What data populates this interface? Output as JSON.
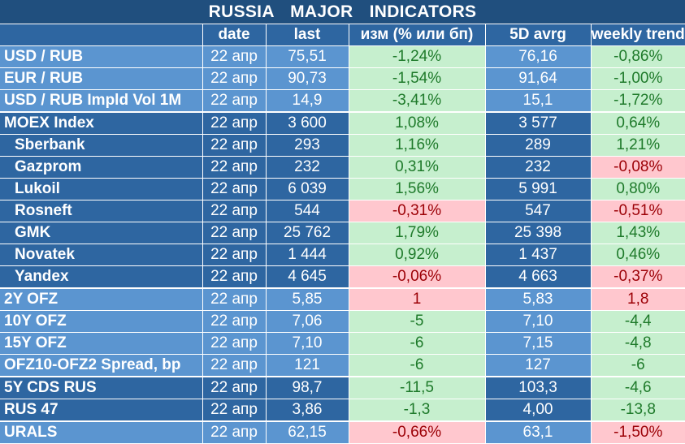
{
  "title": "RUSSIA   MAJOR   INDICATORS",
  "columns": [
    "",
    "date",
    "last",
    "изм (% или бп)",
    "5D avrg",
    "weekly trend"
  ],
  "colors": {
    "header_bg": "#204f7e",
    "dark_row": "#2e66a1",
    "light_row": "#5b95d0",
    "pos_bg": "#c6efce",
    "pos_fg": "#1e7a2a",
    "neg_bg": "#ffc7ce",
    "neg_fg": "#9c0006"
  },
  "chart_data": {
    "type": "table",
    "title": "RUSSIA   MAJOR   INDICATORS",
    "columns": [
      "",
      "date",
      "last",
      "изм (% или бп)",
      "5D avrg",
      "weekly trend"
    ],
    "rows": [
      {
        "name": "USD / RUB",
        "group": "fx",
        "sub": false,
        "date": "22 апр",
        "last": "75,51",
        "chg": "-1,24%",
        "chg_sign": "pos",
        "avg": "76,16",
        "trend": "-0,86%",
        "trend_sign": "pos"
      },
      {
        "name": "EUR / RUB",
        "group": "fx",
        "sub": false,
        "date": "22 апр",
        "last": "90,73",
        "chg": "-1,54%",
        "chg_sign": "pos",
        "avg": "91,64",
        "trend": "-1,00%",
        "trend_sign": "pos"
      },
      {
        "name": "USD / RUB Impld Vol 1M",
        "group": "fx",
        "sub": false,
        "date": "22 апр",
        "last": "14,9",
        "chg": "-3,41%",
        "chg_sign": "pos",
        "avg": "15,1",
        "trend": "-1,72%",
        "trend_sign": "pos"
      },
      {
        "name": "MOEX Index",
        "group": "eq",
        "sub": false,
        "date": "22 апр",
        "last": "3 600",
        "chg": "1,08%",
        "chg_sign": "pos",
        "avg": "3 577",
        "trend": "0,64%",
        "trend_sign": "pos"
      },
      {
        "name": "Sberbank",
        "group": "eq",
        "sub": true,
        "date": "22 апр",
        "last": "293",
        "chg": "1,16%",
        "chg_sign": "pos",
        "avg": "289",
        "trend": "1,21%",
        "trend_sign": "pos"
      },
      {
        "name": "Gazprom",
        "group": "eq",
        "sub": true,
        "date": "22 апр",
        "last": "232",
        "chg": "0,31%",
        "chg_sign": "pos",
        "avg": "232",
        "trend": "-0,08%",
        "trend_sign": "neg"
      },
      {
        "name": "Lukoil",
        "group": "eq",
        "sub": true,
        "date": "22 апр",
        "last": "6 039",
        "chg": "1,56%",
        "chg_sign": "pos",
        "avg": "5 991",
        "trend": "0,80%",
        "trend_sign": "pos"
      },
      {
        "name": "Rosneft",
        "group": "eq",
        "sub": true,
        "date": "22 апр",
        "last": "544",
        "chg": "-0,31%",
        "chg_sign": "neg",
        "avg": "547",
        "trend": "-0,51%",
        "trend_sign": "neg"
      },
      {
        "name": "GMK",
        "group": "eq",
        "sub": true,
        "date": "22 апр",
        "last": "25 762",
        "chg": "1,79%",
        "chg_sign": "pos",
        "avg": "25 398",
        "trend": "1,43%",
        "trend_sign": "pos"
      },
      {
        "name": "Novatek",
        "group": "eq",
        "sub": true,
        "date": "22 апр",
        "last": "1 444",
        "chg": "0,92%",
        "chg_sign": "pos",
        "avg": "1 437",
        "trend": "0,46%",
        "trend_sign": "pos"
      },
      {
        "name": "Yandex",
        "group": "eq",
        "sub": true,
        "date": "22 апр",
        "last": "4 645",
        "chg": "-0,06%",
        "chg_sign": "neg",
        "avg": "4 663",
        "trend": "-0,37%",
        "trend_sign": "neg"
      },
      {
        "name": "2Y OFZ",
        "group": "ofz",
        "sub": false,
        "date": "22 апр",
        "last": "5,85",
        "chg": "1",
        "chg_sign": "neg",
        "avg": "5,83",
        "trend": "1,8",
        "trend_sign": "neg"
      },
      {
        "name": "10Y OFZ",
        "group": "ofz",
        "sub": false,
        "date": "22 апр",
        "last": "7,06",
        "chg": "-5",
        "chg_sign": "pos",
        "avg": "7,10",
        "trend": "-4,4",
        "trend_sign": "pos"
      },
      {
        "name": "15Y OFZ",
        "group": "ofz",
        "sub": false,
        "date": "22 апр",
        "last": "7,10",
        "chg": "-6",
        "chg_sign": "pos",
        "avg": "7,15",
        "trend": "-4,8",
        "trend_sign": "pos"
      },
      {
        "name": "OFZ10-OFZ2 Spread, bp",
        "group": "ofz",
        "sub": false,
        "date": "22 апр",
        "last": "121",
        "chg": "-6",
        "chg_sign": "pos",
        "avg": "127",
        "trend": "-6",
        "trend_sign": "pos"
      },
      {
        "name": "5Y CDS RUS",
        "group": "cds",
        "sub": false,
        "date": "22 апр",
        "last": "98,7",
        "chg": "-11,5",
        "chg_sign": "pos",
        "avg": "103,3",
        "trend": "-4,6",
        "trend_sign": "pos"
      },
      {
        "name": "RUS 47",
        "group": "cds",
        "sub": false,
        "date": "22 апр",
        "last": "3,86",
        "chg": "-1,3",
        "chg_sign": "pos",
        "avg": "4,00",
        "trend": "-13,8",
        "trend_sign": "pos"
      },
      {
        "name": "URALS",
        "group": "urals",
        "sub": false,
        "date": "22 апр",
        "last": "62,15",
        "chg": "-0,66%",
        "chg_sign": "neg",
        "avg": "63,1",
        "trend": "-1,50%",
        "trend_sign": "neg"
      }
    ]
  }
}
